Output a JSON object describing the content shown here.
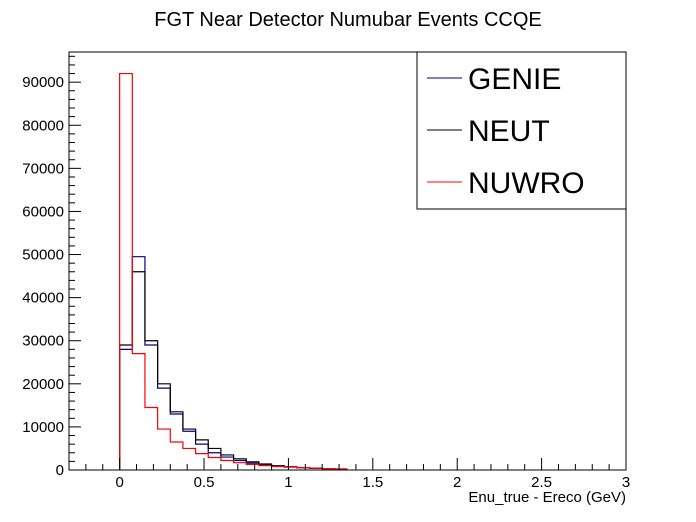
{
  "chart_data": {
    "type": "histogram",
    "title": "FGT Near Detector Numubar Events CCQE",
    "xlabel": "Enu_true - Ereco (GeV)",
    "ylabel": "",
    "xlim": [
      -0.3,
      3.0
    ],
    "ylim": [
      0,
      97000
    ],
    "xticks": [
      0,
      0.5,
      1,
      1.5,
      2,
      2.5,
      3
    ],
    "xtick_labels": [
      "0",
      "0.5",
      "1",
      "1.5",
      "2",
      "2.5",
      "3"
    ],
    "yticks": [
      0,
      10000,
      20000,
      30000,
      40000,
      50000,
      60000,
      70000,
      80000,
      90000
    ],
    "ytick_labels": [
      "0",
      "10000",
      "20000",
      "30000",
      "40000",
      "50000",
      "60000",
      "70000",
      "80000",
      "90000"
    ],
    "bin_start": 0.0,
    "bin_width": 0.075,
    "legend_position": "top-right",
    "legend": [
      "GENIE",
      "NEUT",
      "NUWRO"
    ],
    "series": [
      {
        "name": "GENIE",
        "color": "#000080",
        "values": [
          28000,
          49500,
          29000,
          19000,
          13000,
          9000,
          6000,
          4000,
          3000,
          2200,
          1600,
          1200,
          900,
          700,
          550,
          420,
          330,
          250
        ]
      },
      {
        "name": "NEUT",
        "color": "#000000",
        "values": [
          29000,
          46000,
          30000,
          20000,
          13500,
          9500,
          7000,
          5000,
          3500,
          2600,
          1900,
          1400,
          1000,
          750,
          550,
          400,
          300,
          220
        ]
      },
      {
        "name": "NUWRO",
        "color": "#ff0000",
        "values": [
          92000,
          27000,
          14500,
          9500,
          6500,
          5000,
          3800,
          2900,
          2200,
          1700,
          1300,
          1000,
          800,
          700,
          550,
          420,
          330,
          250
        ]
      }
    ]
  }
}
